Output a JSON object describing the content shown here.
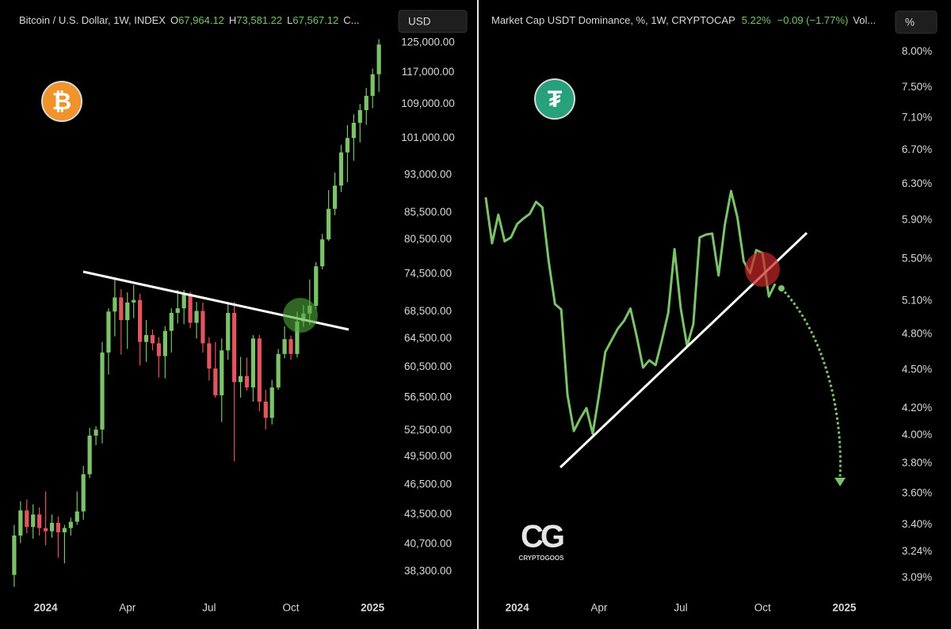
{
  "chart_data": [
    {
      "type": "candlestick",
      "title": "Bitcoin / U.S. Dollar, 1W, INDEX",
      "header_items": [
        {
          "key": "O",
          "text": "67,964.12"
        },
        {
          "key": "H",
          "text": "73,581.22"
        },
        {
          "key": "L",
          "text": "67,567.12"
        },
        {
          "key": "C..."
        }
      ],
      "unit": "USD",
      "logo": "₿",
      "logo_color": "#f0932b",
      "header_color": "#7cc26b",
      "up_color": "#7cc26b",
      "down_color": "#e2545f",
      "log_scale": true,
      "grid": false,
      "xlim": [
        -6,
        54.5
      ],
      "ylim": [
        36400,
        127000
      ],
      "xticks": [
        {
          "value": 0,
          "label": "2024"
        },
        {
          "value": 13,
          "label": "Apr"
        },
        {
          "value": 26,
          "label": "Jul"
        },
        {
          "value": 39,
          "label": "Oct"
        },
        {
          "value": 52,
          "label": "2025"
        }
      ],
      "yticks": [
        {
          "value": 125000,
          "label": "125,000.00"
        },
        {
          "value": 117000,
          "label": "117,000.00"
        },
        {
          "value": 109000,
          "label": "109,000.00"
        },
        {
          "value": 101000,
          "label": "101,000.00"
        },
        {
          "value": 93000,
          "label": "93,000.00"
        },
        {
          "value": 85500,
          "label": "85,500.00"
        },
        {
          "value": 80500,
          "label": "80,500.00"
        },
        {
          "value": 74500,
          "label": "74,500.00"
        },
        {
          "value": 68500,
          "label": "68,500.00"
        },
        {
          "value": 64500,
          "label": "64,500.00"
        },
        {
          "value": 60500,
          "label": "60,500.00"
        },
        {
          "value": 56500,
          "label": "56,500.00"
        },
        {
          "value": 52500,
          "label": "52,500.00"
        },
        {
          "value": 49500,
          "label": "49,500.00"
        },
        {
          "value": 46500,
          "label": "46,500.00"
        },
        {
          "value": 43500,
          "label": "43,500.00"
        },
        {
          "value": 40700,
          "label": "40,700.00"
        },
        {
          "value": 38300,
          "label": "38,300.00"
        }
      ],
      "x": [
        -5,
        -4,
        -3,
        -2,
        -1,
        0,
        1,
        2,
        3,
        4,
        5,
        6,
        7,
        8,
        9,
        10,
        11,
        12,
        13,
        14,
        15,
        16,
        17,
        18,
        19,
        20,
        21,
        22,
        23,
        24,
        25,
        26,
        27,
        28,
        29,
        30,
        31,
        32,
        33,
        34,
        35,
        36,
        37,
        38,
        39,
        40,
        41,
        42,
        43,
        44,
        45,
        46,
        47,
        48,
        49,
        50,
        51,
        52,
        53
      ],
      "open": [
        38000,
        41500,
        43900,
        42300,
        43500,
        42200,
        41900,
        42700,
        41800,
        42200,
        42800,
        43800,
        47600,
        51900,
        52600,
        62500,
        68500,
        70700,
        67200,
        69900,
        70300,
        64000,
        65000,
        63800,
        62000,
        65600,
        68300,
        69000,
        71300,
        66800,
        68600,
        63800,
        60300,
        56800,
        62800,
        68300,
        58500,
        59300,
        57800,
        64500,
        56000,
        54000,
        57800,
        62300,
        64400,
        62300,
        67000,
        68200,
        69400,
        75800,
        80500,
        86200,
        90800,
        97800,
        101000,
        104500,
        107500,
        111000,
        116500
      ],
      "high": [
        42500,
        44800,
        45000,
        44500,
        44200,
        45800,
        43500,
        43300,
        42500,
        43200,
        45800,
        48500,
        52800,
        53000,
        64000,
        69000,
        73800,
        72000,
        71500,
        72700,
        71300,
        67200,
        65800,
        64700,
        66300,
        69000,
        71900,
        71900,
        71600,
        70000,
        69900,
        64700,
        64000,
        64500,
        70000,
        70000,
        61900,
        61800,
        65000,
        65000,
        57500,
        58800,
        63000,
        66300,
        64900,
        68500,
        69500,
        73600,
        76500,
        81500,
        89900,
        93500,
        99500,
        104000,
        106500,
        109000,
        113000,
        118000,
        126000
      ],
      "low": [
        37000,
        40800,
        41700,
        41200,
        41500,
        40600,
        41300,
        39500,
        39000,
        41500,
        42500,
        43000,
        47200,
        50800,
        51000,
        59500,
        64800,
        62200,
        63000,
        67500,
        60700,
        61200,
        62800,
        59100,
        59000,
        62500,
        66700,
        66600,
        66000,
        64500,
        62500,
        58700,
        56500,
        53500,
        61500,
        49000,
        56500,
        57400,
        56000,
        54800,
        52600,
        53200,
        57500,
        61700,
        61500,
        61800,
        66200,
        66500,
        68800,
        75300,
        80200,
        85000,
        89500,
        91500,
        96000,
        100000,
        104000,
        108000,
        112000
      ],
      "close": [
        41500,
        43900,
        42300,
        43500,
        42200,
        41900,
        42700,
        41800,
        42200,
        42800,
        43800,
        47600,
        51900,
        52600,
        62500,
        68500,
        70700,
        67200,
        69900,
        70300,
        64000,
        65000,
        63800,
        62000,
        65600,
        68300,
        69000,
        71300,
        66800,
        68600,
        63800,
        60300,
        56800,
        62800,
        68300,
        58500,
        59300,
        57800,
        64500,
        56000,
        54000,
        57800,
        62300,
        64400,
        62300,
        67000,
        68200,
        69400,
        75800,
        80500,
        86200,
        90800,
        97800,
        101000,
        104500,
        107500,
        111000,
        116500,
        124500
      ]
    },
    {
      "type": "line",
      "title": "Market Cap USDT Dominance, %, 1W, CRYPTOCAP",
      "header_items": [
        {
          "text": "5.22%"
        },
        {
          "text": "−0.09 (−1.77%)"
        },
        {
          "key": "Vol..."
        }
      ],
      "unit": "%",
      "logo": "₮",
      "logo_color": "#26a17b",
      "header_color": "#7cc26b",
      "color": "#7cc26b",
      "log_scale": true,
      "grid": false,
      "xlim": [
        -6,
        59
      ],
      "ylim": [
        3.0,
        8.24
      ],
      "xticks": [
        {
          "value": 0,
          "label": "2024"
        },
        {
          "value": 13,
          "label": "Apr"
        },
        {
          "value": 26,
          "label": "Jul"
        },
        {
          "value": 39,
          "label": "Oct"
        },
        {
          "value": 52,
          "label": "2025"
        }
      ],
      "yticks": [
        {
          "value": 8.0,
          "label": "8.00%"
        },
        {
          "value": 7.5,
          "label": "7.50%"
        },
        {
          "value": 7.1,
          "label": "7.10%"
        },
        {
          "value": 6.7,
          "label": "6.70%"
        },
        {
          "value": 6.3,
          "label": "6.30%"
        },
        {
          "value": 5.9,
          "label": "5.90%"
        },
        {
          "value": 5.5,
          "label": "5.50%"
        },
        {
          "value": 5.1,
          "label": "5.10%"
        },
        {
          "value": 4.8,
          "label": "4.80%"
        },
        {
          "value": 4.5,
          "label": "4.50%"
        },
        {
          "value": 4.2,
          "label": "4.20%"
        },
        {
          "value": 4.0,
          "label": "4.00%"
        },
        {
          "value": 3.8,
          "label": "3.80%"
        },
        {
          "value": 3.6,
          "label": "3.60%"
        },
        {
          "value": 3.4,
          "label": "3.40%"
        },
        {
          "value": 3.24,
          "label": "3.24%"
        },
        {
          "value": 3.09,
          "label": "3.09%"
        }
      ],
      "x": [
        -5,
        -4,
        -3,
        -2,
        -1,
        0,
        1,
        2,
        3,
        4,
        5,
        6,
        7,
        8,
        9,
        10,
        11,
        12,
        13,
        14,
        15,
        16,
        17,
        18,
        19,
        20,
        21,
        22,
        23,
        24,
        25,
        26,
        27,
        28,
        29,
        30,
        31,
        32,
        33,
        34,
        35,
        36,
        37,
        38,
        39,
        40,
        41
      ],
      "values": [
        6.15,
        5.66,
        5.96,
        5.68,
        5.72,
        5.86,
        5.92,
        5.97,
        6.1,
        6.04,
        5.48,
        5.07,
        5.02,
        4.3,
        4.03,
        4.12,
        4.2,
        4.01,
        4.3,
        4.65,
        4.75,
        4.85,
        4.92,
        5.03,
        4.78,
        4.52,
        4.58,
        4.54,
        4.75,
        4.99,
        5.6,
        5.03,
        4.7,
        4.89,
        5.72,
        5.75,
        5.76,
        5.34,
        5.85,
        6.22,
        5.93,
        5.48,
        5.36,
        5.59,
        5.56,
        5.14,
        5.26
      ]
    }
  ],
  "watermark": {
    "logo": "CG",
    "text": "CRYPTOGOOS"
  }
}
